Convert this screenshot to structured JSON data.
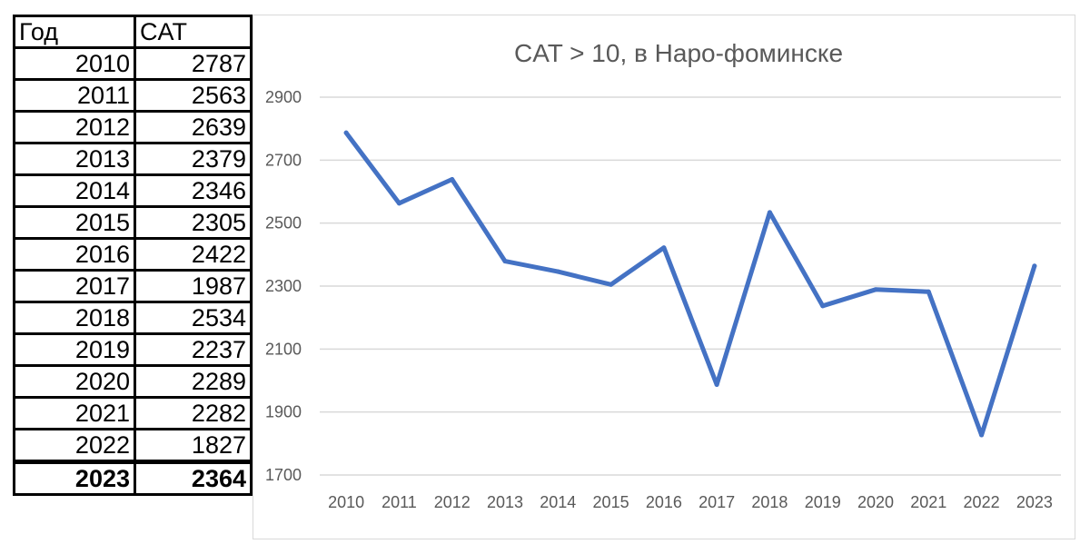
{
  "table": {
    "headers": [
      "Год",
      "CAT"
    ],
    "rows": [
      {
        "year": "2010",
        "value": "2787"
      },
      {
        "year": "2011",
        "value": "2563"
      },
      {
        "year": "2012",
        "value": "2639"
      },
      {
        "year": "2013",
        "value": "2379"
      },
      {
        "year": "2014",
        "value": "2346"
      },
      {
        "year": "2015",
        "value": "2305"
      },
      {
        "year": "2016",
        "value": "2422"
      },
      {
        "year": "2017",
        "value": "1987"
      },
      {
        "year": "2018",
        "value": "2534"
      },
      {
        "year": "2019",
        "value": "2237"
      },
      {
        "year": "2020",
        "value": "2289"
      },
      {
        "year": "2021",
        "value": "2282"
      },
      {
        "year": "2022",
        "value": "1827"
      },
      {
        "year": "2023",
        "value": "2364",
        "bold": true
      }
    ]
  },
  "chart_data": {
    "type": "line",
    "title": "CAT > 10, в Наро-фоминске",
    "xlabel": "",
    "ylabel": "",
    "x": [
      "2010",
      "2011",
      "2012",
      "2013",
      "2014",
      "2015",
      "2016",
      "2017",
      "2018",
      "2019",
      "2020",
      "2021",
      "2022",
      "2023"
    ],
    "series": [
      {
        "values": [
          2787,
          2563,
          2639,
          2379,
          2346,
          2305,
          2422,
          1987,
          2534,
          2237,
          2289,
          2282,
          1827,
          2364
        ],
        "color": "#4472c4"
      }
    ],
    "ylim": [
      1700,
      2900
    ],
    "yticks": [
      "1700",
      "1900",
      "2100",
      "2300",
      "2500",
      "2700",
      "2900"
    ],
    "grid": true,
    "legend": "none"
  }
}
